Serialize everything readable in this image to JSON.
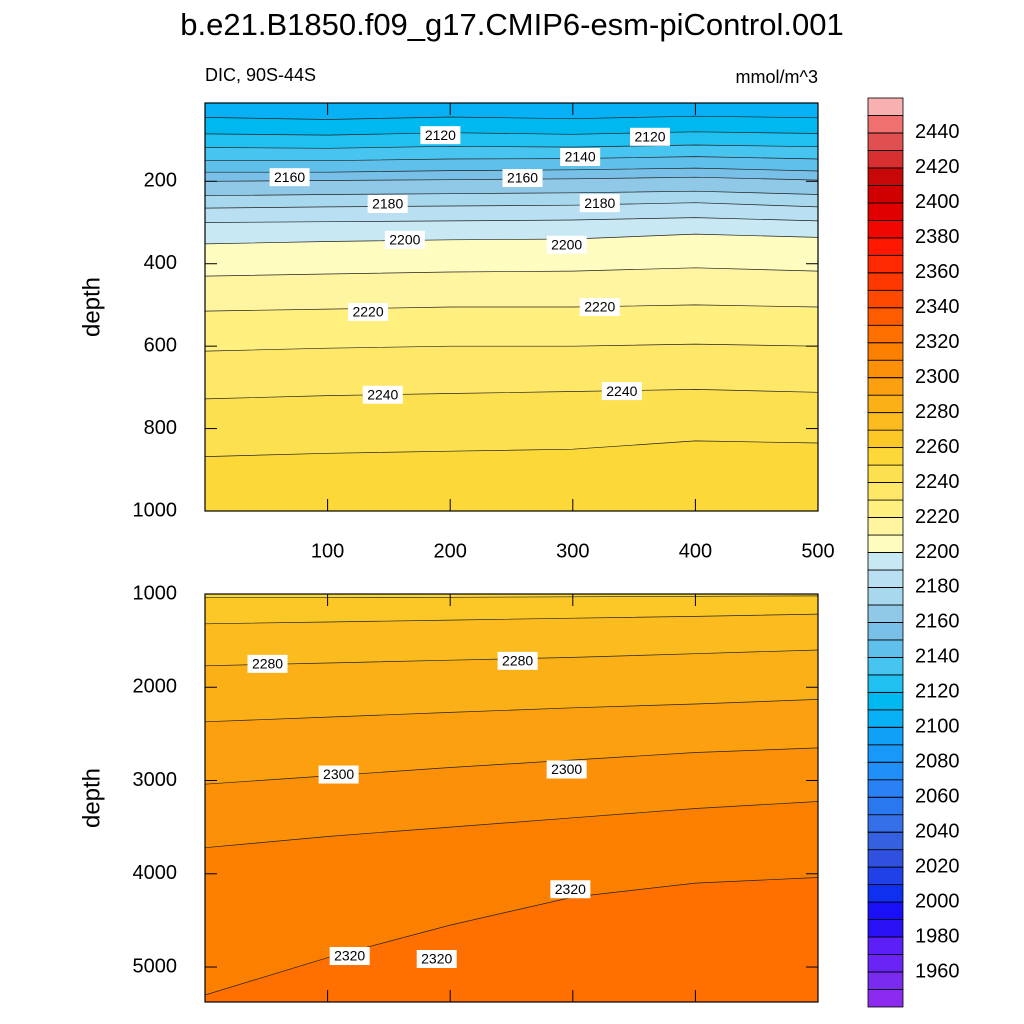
{
  "title": "b.e21.B1850.f09_g17.CMIP6-esm-piControl.001",
  "chart_data": [
    {
      "type": "contour",
      "left_label": "DIC, 90S-44S",
      "right_label": "mmol/m^3",
      "ylabel": "depth",
      "xlim": [
        0,
        500
      ],
      "xticks": [
        100,
        200,
        300,
        400,
        500
      ],
      "show_xtick_labels": true,
      "ylim": [
        10,
        1000
      ],
      "yticks": [
        200,
        400,
        600,
        800,
        1000
      ],
      "reverse_y": true,
      "x": [
        0,
        100,
        200,
        300,
        400,
        500
      ],
      "contours": [
        {
          "level": 2110,
          "depths": [
            45,
            50,
            44,
            48,
            42,
            46
          ]
        },
        {
          "level": 2120,
          "depths": [
            85,
            88,
            82,
            86,
            80,
            84
          ]
        },
        {
          "level": 2130,
          "depths": [
            118,
            120,
            115,
            117,
            112,
            116
          ]
        },
        {
          "level": 2140,
          "depths": [
            150,
            150,
            146,
            145,
            140,
            146
          ]
        },
        {
          "level": 2150,
          "depths": [
            178,
            178,
            174,
            172,
            168,
            175
          ]
        },
        {
          "level": 2160,
          "depths": [
            200,
            198,
            196,
            194,
            190,
            197
          ]
        },
        {
          "level": 2170,
          "depths": [
            235,
            232,
            230,
            228,
            224,
            232
          ]
        },
        {
          "level": 2180,
          "depths": [
            265,
            262,
            260,
            258,
            252,
            262
          ]
        },
        {
          "level": 2190,
          "depths": [
            300,
            298,
            296,
            294,
            288,
            296
          ]
        },
        {
          "level": 2200,
          "depths": [
            352,
            346,
            342,
            340,
            328,
            336
          ]
        },
        {
          "level": 2210,
          "depths": [
            430,
            425,
            420,
            418,
            410,
            418
          ]
        },
        {
          "level": 2220,
          "depths": [
            515,
            510,
            505,
            505,
            500,
            505
          ]
        },
        {
          "level": 2230,
          "depths": [
            612,
            605,
            600,
            600,
            595,
            600
          ]
        },
        {
          "level": 2240,
          "depths": [
            728,
            720,
            715,
            710,
            705,
            712
          ]
        },
        {
          "level": 2250,
          "depths": [
            868,
            860,
            855,
            850,
            830,
            835
          ]
        }
      ],
      "contour_labels": [
        {
          "value": 2120,
          "x": 192,
          "depth": 88
        },
        {
          "value": 2120,
          "x": 363,
          "depth": 92
        },
        {
          "value": 2140,
          "x": 306,
          "depth": 141
        },
        {
          "value": 2160,
          "x": 69,
          "depth": 190
        },
        {
          "value": 2160,
          "x": 259,
          "depth": 192
        },
        {
          "value": 2180,
          "x": 149,
          "depth": 255
        },
        {
          "value": 2180,
          "x": 322,
          "depth": 253
        },
        {
          "value": 2200,
          "x": 163,
          "depth": 342
        },
        {
          "value": 2200,
          "x": 295,
          "depth": 354
        },
        {
          "value": 2220,
          "x": 133,
          "depth": 517
        },
        {
          "value": 2220,
          "x": 322,
          "depth": 505
        },
        {
          "value": 2240,
          "x": 145,
          "depth": 718
        },
        {
          "value": 2240,
          "x": 340,
          "depth": 709
        }
      ]
    },
    {
      "type": "contour",
      "ylabel": "depth",
      "xlim": [
        0,
        500
      ],
      "xticks": [
        100,
        200,
        300,
        400,
        500
      ],
      "show_xtick_labels": false,
      "ylim": [
        1000,
        5375
      ],
      "yticks": [
        1000,
        2000,
        3000,
        4000,
        5000
      ],
      "reverse_y": true,
      "x": [
        0,
        100,
        200,
        300,
        400,
        500
      ],
      "contours": [
        {
          "level": 2260,
          "depths": [
            1040,
            1040,
            1035,
            1030,
            1025,
            1020
          ]
        },
        {
          "level": 2270,
          "depths": [
            1320,
            1300,
            1280,
            1260,
            1240,
            1215
          ]
        },
        {
          "level": 2280,
          "depths": [
            1770,
            1740,
            1710,
            1680,
            1640,
            1600
          ]
        },
        {
          "level": 2290,
          "depths": [
            2370,
            2320,
            2270,
            2220,
            2180,
            2130
          ]
        },
        {
          "level": 2300,
          "depths": [
            3040,
            2950,
            2860,
            2780,
            2700,
            2650
          ]
        },
        {
          "level": 2310,
          "depths": [
            3720,
            3600,
            3500,
            3400,
            3300,
            3225
          ]
        },
        {
          "level": 2320,
          "depths": [
            5300,
            4900,
            4550,
            4250,
            4100,
            4040
          ]
        }
      ],
      "contour_labels": [
        {
          "value": 2280,
          "x": 51,
          "depth": 1749
        },
        {
          "value": 2280,
          "x": 255,
          "depth": 1717
        },
        {
          "value": 2300,
          "x": 109,
          "depth": 2936
        },
        {
          "value": 2300,
          "x": 295,
          "depth": 2882
        },
        {
          "value": 2320,
          "x": 298,
          "depth": 4166
        },
        {
          "value": 2320,
          "x": 118,
          "depth": 4882
        },
        {
          "value": 2320,
          "x": 189,
          "depth": 4914
        }
      ]
    }
  ],
  "colorbar": {
    "range": [
      1940,
      2460
    ],
    "ticks": [
      1960,
      1980,
      2000,
      2020,
      2040,
      2060,
      2080,
      2100,
      2120,
      2140,
      2160,
      2180,
      2200,
      2220,
      2240,
      2260,
      2280,
      2300,
      2320,
      2340,
      2360,
      2380,
      2400,
      2420,
      2440
    ],
    "colors": [
      "#8c2bef",
      "#7a2bf0",
      "#6a24f5",
      "#5c1ff7",
      "#2a10f5",
      "#1a10f8",
      "#1030f0",
      "#2040e8",
      "#3050e0",
      "#3560e0",
      "#3570e8",
      "#2a78f0",
      "#2a80f5",
      "#2090f8",
      "#1898f8",
      "#10a0f8",
      "#08b0f5",
      "#00b8f0",
      "#20c0f0",
      "#48c4f0",
      "#60c0ec",
      "#78c0e8",
      "#90c8e8",
      "#a8d8ee",
      "#b8e0f2",
      "#c8e8f4",
      "#fffcc0",
      "#fff4a0",
      "#fff080",
      "#ffe868",
      "#fde050",
      "#fcd838",
      "#fcc828",
      "#fcbc20",
      "#fcb018",
      "#fca010",
      "#fc9008",
      "#fc8000",
      "#ff7000",
      "#ff5c00",
      "#ff4800",
      "#ff3800",
      "#ff2800",
      "#ff1800",
      "#f00800",
      "#e00000",
      "#d00000",
      "#c80808",
      "#d83030",
      "#e05050",
      "#f07070",
      "#f8b0b0"
    ]
  }
}
